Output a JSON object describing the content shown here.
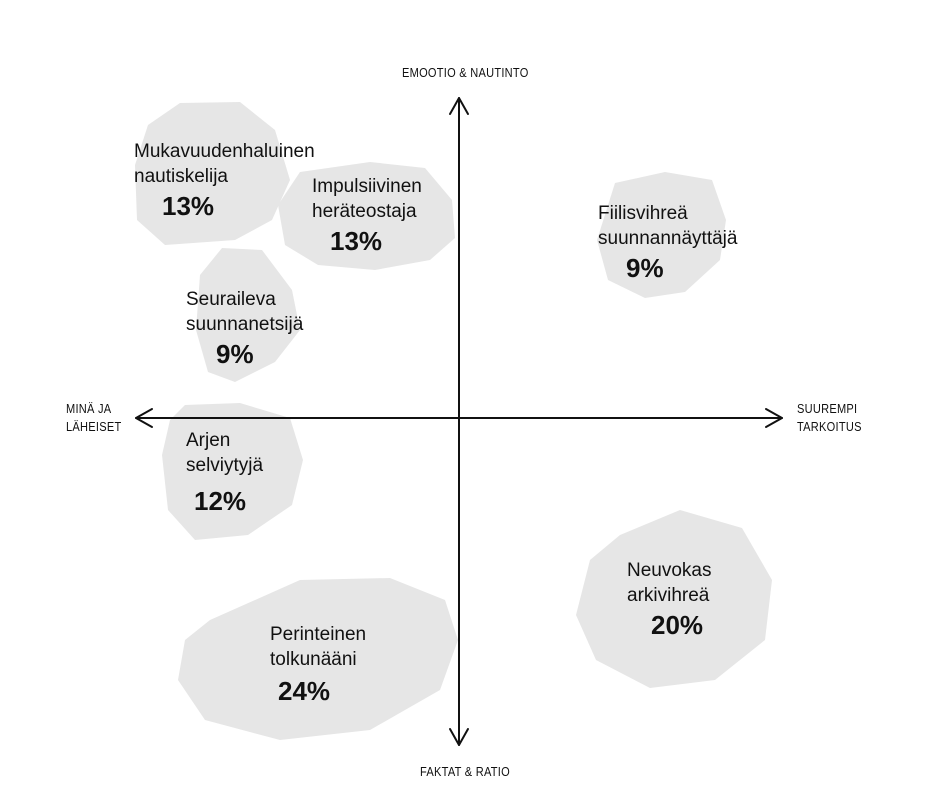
{
  "axes": {
    "top": "EMOOTIO & NAUTINTO",
    "bottom": "FAKTAT & RATIO",
    "left_line1": "MINÄ JA",
    "left_line2": "LÄHEISET",
    "right_line1": "SUUREMPI",
    "right_line2": "TARKOITUS"
  },
  "colors": {
    "blob": "#e6e6e6",
    "axis": "#111111",
    "text": "#111111"
  },
  "segments": [
    {
      "line1": "Mukavuudenhaluinen",
      "line2": "nautiskelija",
      "percent": "13%"
    },
    {
      "line1": "Impulsiivinen",
      "line2": "heräteostaja",
      "percent": "13%"
    },
    {
      "line1": "Seuraileva",
      "line2": "suunnanetsijä",
      "percent": "9%"
    },
    {
      "line1": "Arjen",
      "line2": "selviytyjä",
      "percent": "12%"
    },
    {
      "line1": "Perinteinen",
      "line2": "tolkunääni",
      "percent": "24%"
    },
    {
      "line1": "Fiilisvihreä",
      "line2": "suunnannäyttäjä",
      "percent": "9%"
    },
    {
      "line1": "Neuvokas",
      "line2": "arkivihreä",
      "percent": "20%"
    }
  ]
}
